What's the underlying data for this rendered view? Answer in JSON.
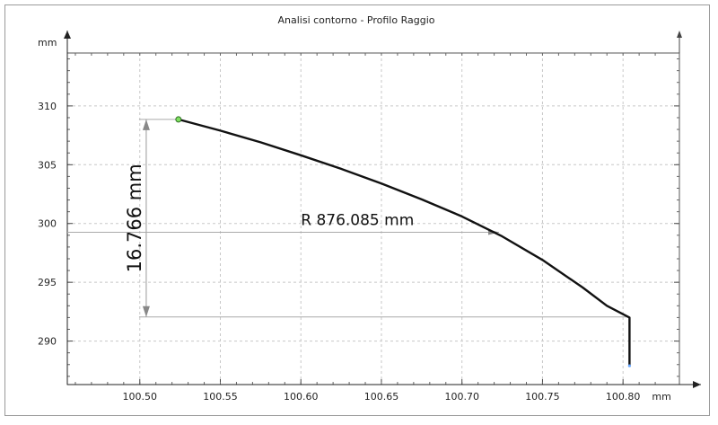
{
  "chart_data": {
    "type": "line",
    "title": "Analisi contorno - Profilo Raggio",
    "ylabel": "mm",
    "x_unit": "mm",
    "xlim": [
      100.455,
      100.835
    ],
    "ylim": [
      286.3,
      314.5
    ],
    "x_ticks": [
      "100.50",
      "100.55",
      "100.60",
      "100.65",
      "100.70",
      "100.75",
      "100.80"
    ],
    "y_ticks": [
      "290",
      "295",
      "300",
      "305",
      "310"
    ],
    "grid": true,
    "series": [
      {
        "x": [
          100.524,
          100.55,
          100.575,
          100.6,
          100.625,
          100.65,
          100.675,
          100.7,
          100.725,
          100.75,
          100.775,
          100.79,
          100.804,
          100.804
        ],
        "y": [
          308.85,
          307.9,
          306.9,
          305.8,
          304.65,
          303.4,
          302.05,
          300.6,
          298.9,
          296.9,
          294.55,
          293.0,
          292.0,
          287.9
        ],
        "color": "#111111"
      }
    ],
    "start_point": {
      "x": 100.524,
      "y": 308.85,
      "color": "#7fe060"
    },
    "annotations": {
      "radius_label": "R 876.085 mm",
      "radius_line_y": 299.25,
      "radius_arrow_x": 100.723,
      "height_label": "16.766 mm",
      "height_line_x": 100.504,
      "height_top_y": 308.85,
      "height_bottom_y": 292.05,
      "height_bottom_ref_x": 100.804
    }
  }
}
